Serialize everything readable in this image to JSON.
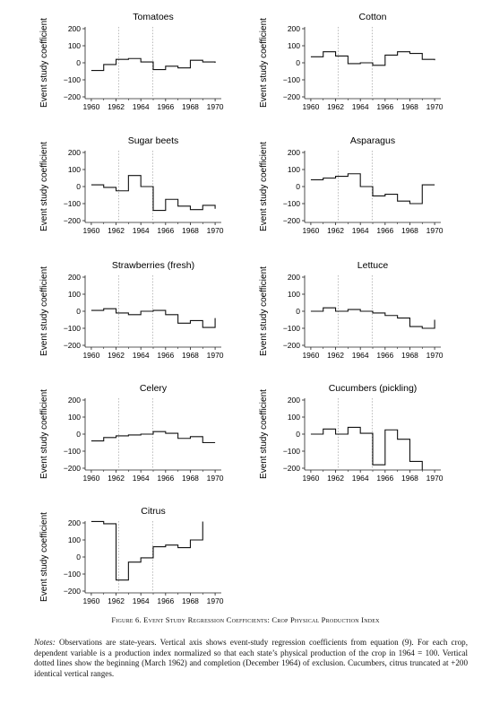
{
  "ylabel": "Event study coefficient",
  "figure_caption": "Figure 6. Event Study Regression Coefficients: Crop Physical Production Index",
  "notes_label": "Notes:",
  "notes_text": "Observations are state-years. Vertical axis shows event-study regression coefficients from equation (9). For each crop, dependent variable is a production index normalized so that each state’s physical production of the crop in 1964 = 100. Vertical dotted lines show the beginning (March 1962) and completion (December 1964) of exclusion. Cucumbers, citrus truncated at +200 identical vertical ranges.",
  "chart_data": [
    {
      "type": "line",
      "title": "Tomatoes",
      "xlabel": "",
      "ylabel": "Event study coefficient",
      "x_ticks": [
        1960,
        1962,
        1964,
        1966,
        1968,
        1970
      ],
      "y_ticks": [
        -200,
        -100,
        0,
        100,
        200
      ],
      "xlim": [
        1959.5,
        1970.5
      ],
      "ylim": [
        -200,
        200
      ],
      "vlines": [
        1962.2,
        1964.95
      ],
      "x": [
        1960,
        1961,
        1962,
        1963,
        1964,
        1965,
        1966,
        1967,
        1968,
        1969,
        1970
      ],
      "y": [
        -45,
        -10,
        20,
        25,
        5,
        -40,
        -20,
        -30,
        15,
        5,
        0
      ]
    },
    {
      "type": "line",
      "title": "Cotton",
      "xlabel": "",
      "ylabel": "Event study coefficient",
      "x_ticks": [
        1960,
        1962,
        1964,
        1966,
        1968,
        1970
      ],
      "y_ticks": [
        -200,
        -100,
        0,
        100,
        200
      ],
      "xlim": [
        1959.5,
        1970.5
      ],
      "ylim": [
        -200,
        200
      ],
      "vlines": [
        1962.2,
        1964.95
      ],
      "x": [
        1960,
        1961,
        1962,
        1963,
        1964,
        1965,
        1966,
        1967,
        1968,
        1969,
        1970
      ],
      "y": [
        35,
        65,
        40,
        -5,
        0,
        -15,
        45,
        65,
        55,
        20,
        15
      ]
    },
    {
      "type": "line",
      "title": "Sugar beets",
      "xlabel": "",
      "ylabel": "Event study coefficient",
      "x_ticks": [
        1960,
        1962,
        1964,
        1966,
        1968,
        1970
      ],
      "y_ticks": [
        -200,
        -100,
        0,
        100,
        200
      ],
      "xlim": [
        1959.5,
        1970.5
      ],
      "ylim": [
        -200,
        200
      ],
      "vlines": [
        1962.2,
        1964.95
      ],
      "x": [
        1960,
        1961,
        1962,
        1963,
        1964,
        1965,
        1966,
        1967,
        1968,
        1969,
        1970
      ],
      "y": [
        10,
        -5,
        -25,
        65,
        0,
        -140,
        -75,
        -115,
        -135,
        -110,
        -130
      ]
    },
    {
      "type": "line",
      "title": "Asparagus",
      "xlabel": "",
      "ylabel": "Event study coefficient",
      "x_ticks": [
        1960,
        1962,
        1964,
        1966,
        1968,
        1970
      ],
      "y_ticks": [
        -200,
        -100,
        0,
        100,
        200
      ],
      "xlim": [
        1959.5,
        1970.5
      ],
      "ylim": [
        -200,
        200
      ],
      "vlines": [
        1962.2,
        1964.95
      ],
      "x": [
        1960,
        1961,
        1962,
        1963,
        1964,
        1965,
        1966,
        1967,
        1968,
        1969,
        1970
      ],
      "y": [
        40,
        50,
        60,
        75,
        0,
        -55,
        -45,
        -85,
        -100,
        10,
        10
      ]
    },
    {
      "type": "line",
      "title": "Strawberries (fresh)",
      "xlabel": "",
      "ylabel": "Event study coefficient",
      "x_ticks": [
        1960,
        1962,
        1964,
        1966,
        1968,
        1970
      ],
      "y_ticks": [
        -200,
        -100,
        0,
        100,
        200
      ],
      "xlim": [
        1959.5,
        1970.5
      ],
      "ylim": [
        -200,
        200
      ],
      "vlines": [
        1962.2,
        1964.95
      ],
      "x": [
        1960,
        1961,
        1962,
        1963,
        1964,
        1965,
        1966,
        1967,
        1968,
        1969,
        1970
      ],
      "y": [
        5,
        15,
        -10,
        -20,
        0,
        5,
        -20,
        -70,
        -55,
        -95,
        -40
      ]
    },
    {
      "type": "line",
      "title": "Lettuce",
      "xlabel": "",
      "ylabel": "Event study coefficient",
      "x_ticks": [
        1960,
        1962,
        1964,
        1966,
        1968,
        1970
      ],
      "y_ticks": [
        -200,
        -100,
        0,
        100,
        200
      ],
      "xlim": [
        1959.5,
        1970.5
      ],
      "ylim": [
        -200,
        200
      ],
      "vlines": [
        1962.2,
        1964.95
      ],
      "x": [
        1960,
        1961,
        1962,
        1963,
        1964,
        1965,
        1966,
        1967,
        1968,
        1969,
        1970
      ],
      "y": [
        0,
        20,
        0,
        10,
        0,
        -10,
        -25,
        -40,
        -90,
        -100,
        -50
      ]
    },
    {
      "type": "line",
      "title": "Celery",
      "xlabel": "",
      "ylabel": "Event study coefficient",
      "x_ticks": [
        1960,
        1962,
        1964,
        1966,
        1968,
        1970
      ],
      "y_ticks": [
        -200,
        -100,
        0,
        100,
        200
      ],
      "xlim": [
        1959.5,
        1970.5
      ],
      "ylim": [
        -200,
        200
      ],
      "vlines": [
        1962.2,
        1964.95
      ],
      "x": [
        1960,
        1961,
        1962,
        1963,
        1964,
        1965,
        1966,
        1967,
        1968,
        1969,
        1970
      ],
      "y": [
        -40,
        -20,
        -10,
        -5,
        0,
        15,
        5,
        -25,
        -15,
        -50,
        -50
      ]
    },
    {
      "type": "line",
      "title": "Cucumbers (pickling)",
      "xlabel": "",
      "ylabel": "Event study coefficient",
      "x_ticks": [
        1960,
        1962,
        1964,
        1966,
        1968,
        1970
      ],
      "y_ticks": [
        -200,
        -100,
        0,
        100,
        200
      ],
      "xlim": [
        1959.5,
        1970.5
      ],
      "ylim": [
        -200,
        200
      ],
      "vlines": [
        1962.2,
        1964.95
      ],
      "x": [
        1960,
        1961,
        1962,
        1963,
        1964,
        1965,
        1966,
        1967,
        1968,
        1969
      ],
      "y": [
        0,
        30,
        0,
        40,
        5,
        -180,
        25,
        -30,
        -160,
        -210
      ]
    },
    {
      "type": "line",
      "title": "Citrus",
      "xlabel": "",
      "ylabel": "Event study coefficient",
      "x_ticks": [
        1960,
        1962,
        1964,
        1966,
        1968,
        1970
      ],
      "y_ticks": [
        -200,
        -100,
        0,
        100,
        200
      ],
      "xlim": [
        1959.5,
        1970.5
      ],
      "ylim": [
        -200,
        200
      ],
      "vlines": [
        1962.2,
        1964.95
      ],
      "x": [
        1960,
        1961,
        1962,
        1963,
        1964,
        1965,
        1966,
        1967,
        1968,
        1969
      ],
      "y": [
        210,
        195,
        -135,
        -30,
        -5,
        60,
        70,
        55,
        100,
        210
      ]
    }
  ]
}
